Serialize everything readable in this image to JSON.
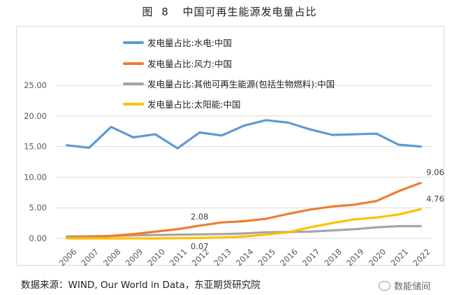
{
  "figure": {
    "prefix": "图",
    "number": "8",
    "title": "中国可再生能源发电量占比"
  },
  "source": "数据来源：WIND, Our World in Data，东亚期货研究院",
  "watermark": "数能储间",
  "colors": {
    "hydro": "#5b9bd5",
    "wind": "#ed7d31",
    "other": "#a5a5a5",
    "solar": "#ffc000",
    "grid": "#d9d9d9",
    "axis_text": "#595959"
  },
  "chart_data": {
    "type": "line",
    "title": "中国可再生能源发电量占比",
    "xlabel": "",
    "ylabel": "",
    "ylim": [
      0,
      25
    ],
    "yticks": [
      "0.00",
      "5.00",
      "10.00",
      "15.00",
      "20.00",
      "25.00"
    ],
    "ytick_values": [
      0,
      5,
      10,
      15,
      20,
      25
    ],
    "x": [
      "2006",
      "2007",
      "2008",
      "2009",
      "2010",
      "2011",
      "2012",
      "2013",
      "2014",
      "2015",
      "2016",
      "2017",
      "2018",
      "2019",
      "2020",
      "2021",
      "2022"
    ],
    "grid": true,
    "legend_position": "top-left",
    "series": [
      {
        "key": "hydro",
        "name": "发电量占比:水电:中国",
        "values": [
          15.2,
          14.8,
          18.2,
          16.5,
          17.0,
          14.7,
          17.3,
          16.8,
          18.4,
          19.3,
          18.9,
          17.8,
          16.9,
          17.0,
          17.1,
          15.3,
          15.0
        ]
      },
      {
        "key": "wind",
        "name": "发电量占比:风力:中国",
        "values": [
          0.1,
          0.2,
          0.4,
          0.7,
          1.1,
          1.5,
          2.08,
          2.6,
          2.8,
          3.2,
          4.0,
          4.7,
          5.2,
          5.5,
          6.1,
          7.7,
          9.06
        ]
      },
      {
        "key": "other",
        "name": "发电量占比:其他可再生能源(包括生物燃料):中国",
        "values": [
          0.3,
          0.35,
          0.4,
          0.5,
          0.55,
          0.6,
          0.65,
          0.7,
          0.8,
          1.0,
          1.05,
          1.1,
          1.3,
          1.5,
          1.8,
          2.0,
          2.0
        ]
      },
      {
        "key": "solar",
        "name": "发电量占比:太阳能:中国",
        "values": [
          0.0,
          0.0,
          0.0,
          0.0,
          0.0,
          0.01,
          0.07,
          0.15,
          0.3,
          0.6,
          1.0,
          1.8,
          2.5,
          3.1,
          3.4,
          3.9,
          4.76
        ]
      }
    ],
    "annotations": [
      {
        "series": "wind",
        "x": "2012",
        "value": 2.08,
        "label": "2.08",
        "position": "above"
      },
      {
        "series": "solar",
        "x": "2012",
        "value": 0.07,
        "label": "0.07",
        "position": "below"
      },
      {
        "series": "wind",
        "x": "2022",
        "value": 9.06,
        "label": "9.06",
        "position": "right"
      },
      {
        "series": "solar",
        "x": "2022",
        "value": 4.76,
        "label": "4.76",
        "position": "right"
      }
    ]
  }
}
